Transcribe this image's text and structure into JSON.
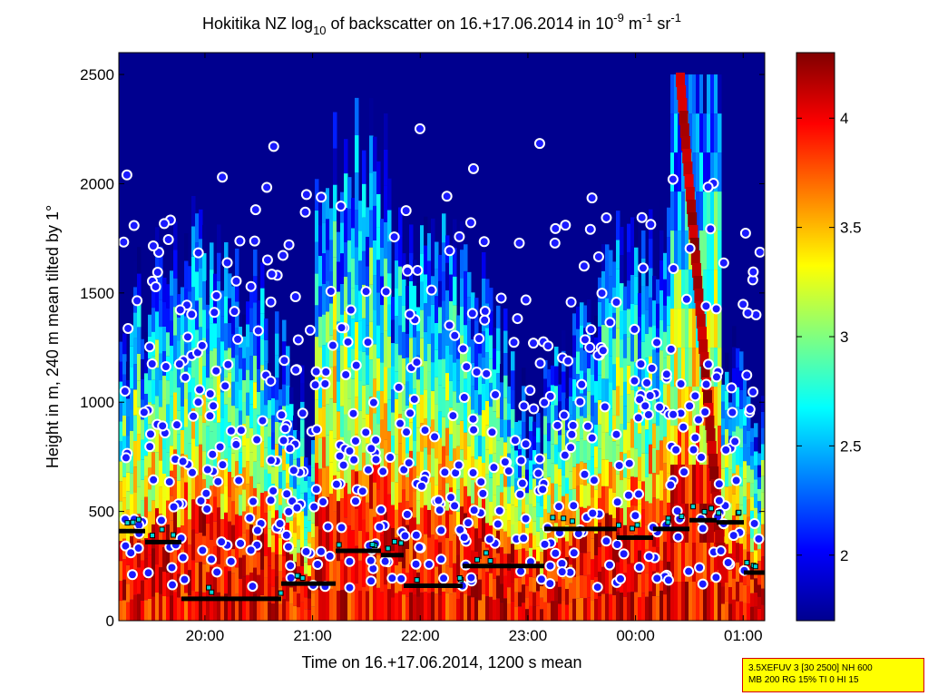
{
  "chart_data": {
    "type": "heatmap",
    "title_parts": {
      "a": "Hokitika NZ log",
      "a_sub": "10",
      "b": " of backscatter on 16.+17.06.2014 in 10",
      "b_sup": "-9",
      "c": " m",
      "c_sup": "-1",
      "d": " sr",
      "d_sup": "-1"
    },
    "xlabel": "Time on 16.+17.06.2014, 1200 s mean",
    "ylabel": "Height in m, 240 m mean tilted by 1°",
    "x_ticks": [
      "20:00",
      "21:00",
      "22:00",
      "23:00",
      "00:00",
      "01:00"
    ],
    "y_ticks": [
      0,
      500,
      1000,
      1500,
      2000,
      2500
    ],
    "ylim": [
      0,
      2600
    ],
    "colorbar_ticks": [
      "2",
      "2.5",
      "3",
      "3.5",
      "4"
    ],
    "colorbar_range": [
      1.7,
      4.3
    ],
    "colors": {
      "low": "#00008f",
      "high": "#800000",
      "marker_dot_fill": "#1a1aff",
      "marker_dot_ring": "#ffffff",
      "square_fill": "#00d8d8"
    },
    "annotation": {
      "line1": "3.5XEFUV 3 [30 2500] NH 600",
      "line2": "MB 200 RG 15% TI 0 HI 15"
    }
  }
}
